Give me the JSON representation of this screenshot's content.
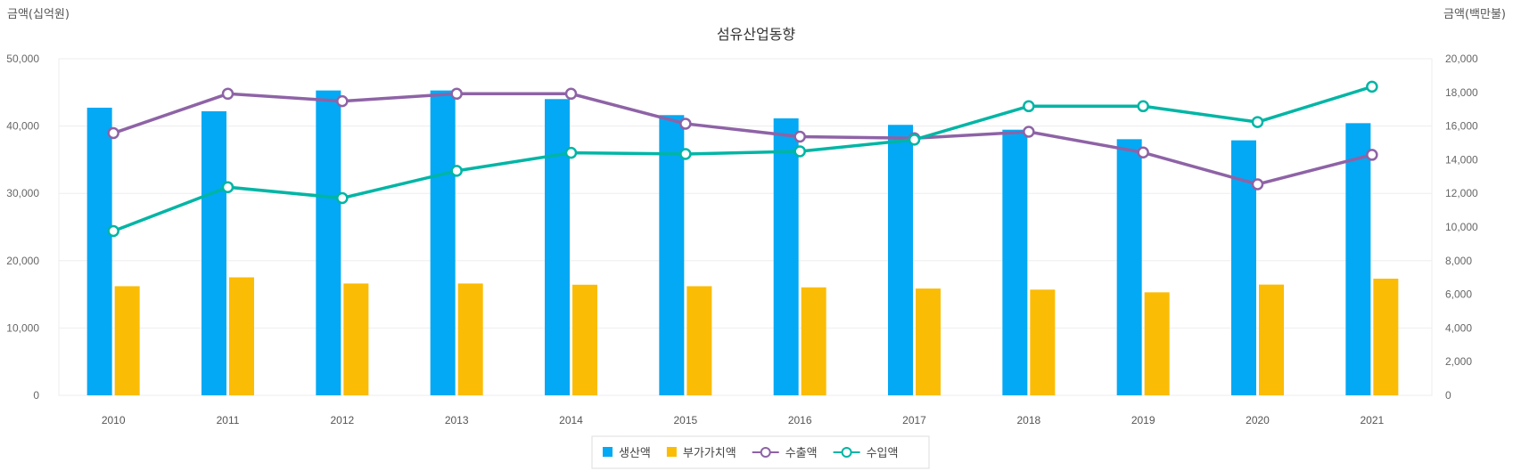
{
  "chart_data": {
    "type": "bar+line",
    "title": "섬유산업동향",
    "ylabel_left": "금액(십억원)",
    "ylabel_right": "금액(백만불)",
    "categories": [
      "2010",
      "2011",
      "2012",
      "2013",
      "2014",
      "2015",
      "2016",
      "2017",
      "2018",
      "2019",
      "2020",
      "2021"
    ],
    "ylim_left": [
      0,
      50000
    ],
    "ylim_right": [
      0,
      20000
    ],
    "yticks_left": [
      "0",
      "10,000",
      "20,000",
      "30,000",
      "40,000",
      "50,000"
    ],
    "yticks_right": [
      "0",
      "2,000",
      "4,000",
      "6,000",
      "8,000",
      "10,000",
      "12,000",
      "14,000",
      "16,000",
      "18,000",
      "20,000"
    ],
    "grid": true,
    "legend_position": "bottom",
    "series": [
      {
        "name": "생산액",
        "type": "bar",
        "axis": "left",
        "color": "#03a9f4",
        "values": [
          42730,
          42200,
          45290,
          45290,
          44010,
          41630,
          41150,
          40180,
          39460,
          38050,
          37880,
          40430
        ]
      },
      {
        "name": "부가가치액",
        "type": "bar",
        "axis": "left",
        "color": "#fbbc05",
        "values": [
          16210,
          17530,
          16610,
          16610,
          16430,
          16210,
          16040,
          15860,
          15700,
          15300,
          16450,
          17330
        ]
      },
      {
        "name": "수출액",
        "type": "line",
        "axis": "right",
        "color": "#8e63a6",
        "values": [
          15580,
          17920,
          17480,
          17920,
          17920,
          16140,
          15370,
          15280,
          15660,
          14430,
          12540,
          14290
        ]
      },
      {
        "name": "수입액",
        "type": "line",
        "axis": "right",
        "color": "#00b5a5",
        "values": [
          9760,
          12370,
          11720,
          13340,
          14410,
          14340,
          14500,
          15190,
          17180,
          17180,
          16240,
          18340
        ]
      }
    ]
  }
}
